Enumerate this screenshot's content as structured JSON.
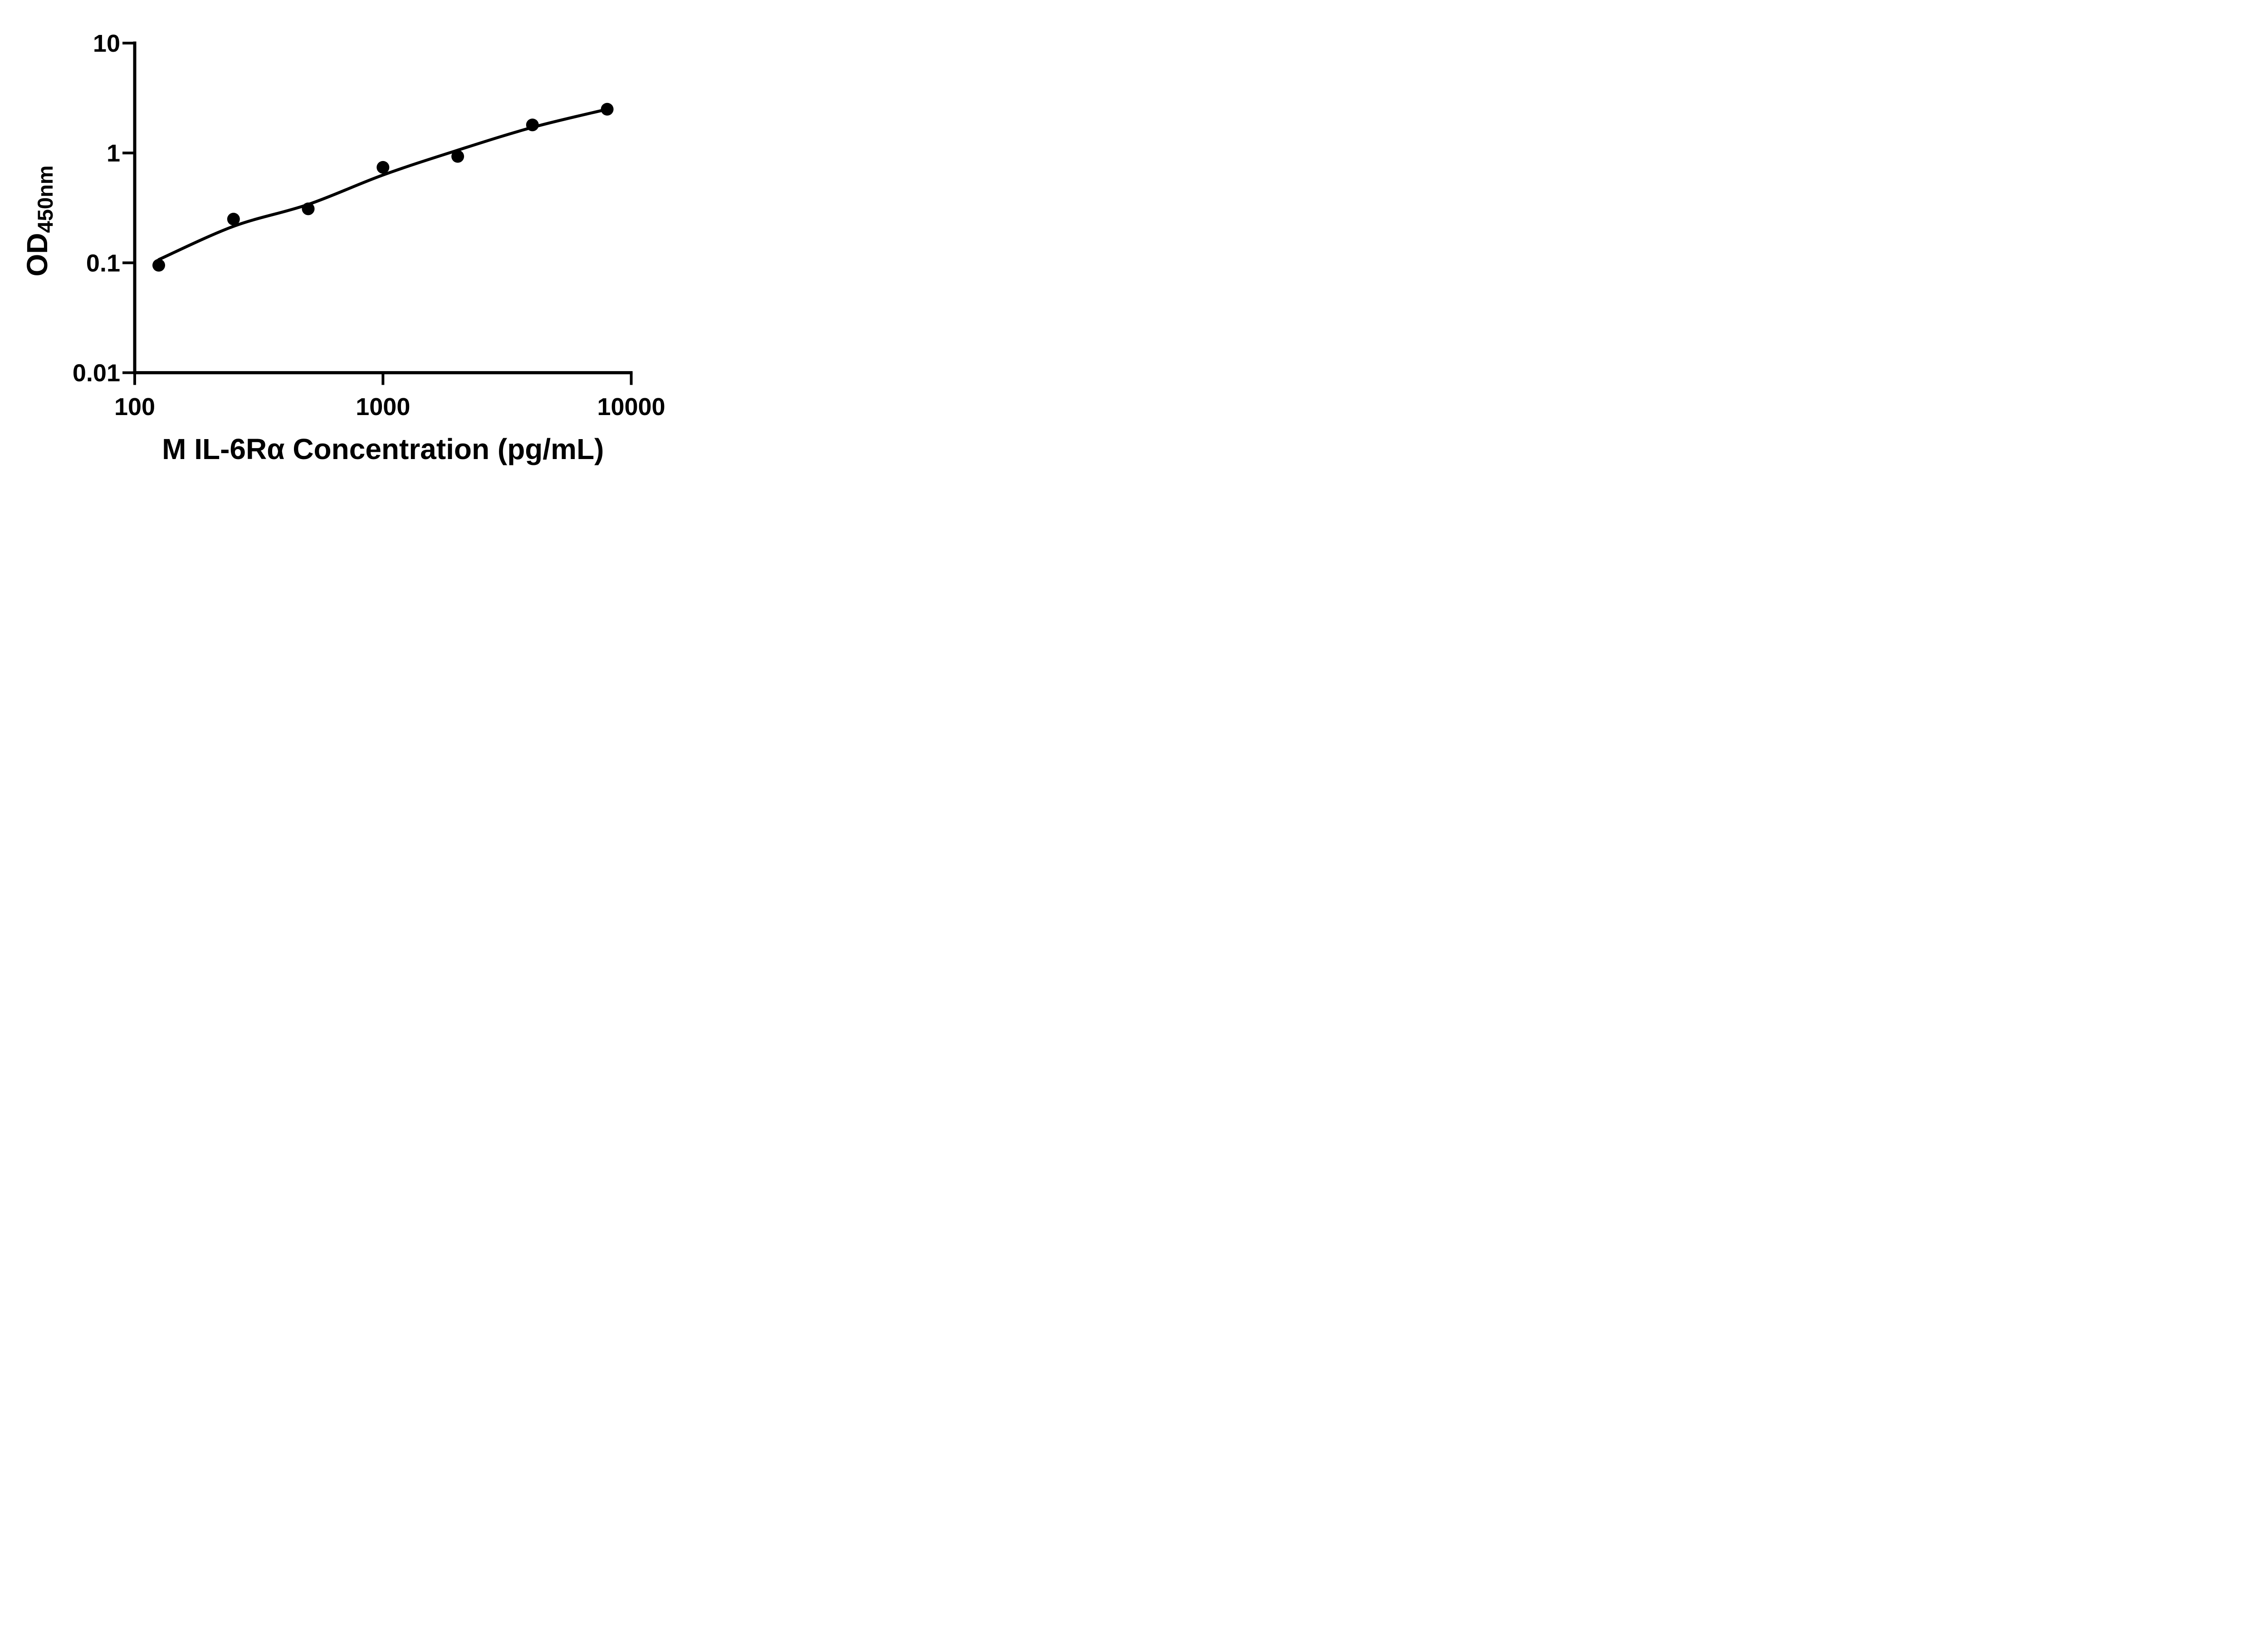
{
  "figure": {
    "background_color": "#ffffff",
    "ink_color": "#000000"
  },
  "chart_data": {
    "type": "scatter",
    "subtype": "log-log standard curve with fitted line",
    "title": "",
    "xlabel": "M IL-6Rα Concentration (pg/mL)",
    "ylabel_base": "OD",
    "ylabel_subscript": "450nm",
    "x_scale": "log10",
    "y_scale": "log10",
    "xlim": [
      100,
      10000
    ],
    "ylim": [
      0.01,
      10
    ],
    "grid": false,
    "legend": "none",
    "x_ticks": [
      {
        "value": 100,
        "label": "100"
      },
      {
        "value": 1000,
        "label": "1000"
      },
      {
        "value": 10000,
        "label": "10000"
      }
    ],
    "y_ticks": [
      {
        "value": 10,
        "label": "10"
      },
      {
        "value": 1,
        "label": "1"
      },
      {
        "value": 0.1,
        "label": "0.1"
      },
      {
        "value": 0.01,
        "label": "0.01"
      }
    ],
    "series": [
      {
        "name": "standard points",
        "marker": "filled-circle",
        "points": [
          {
            "x": 125,
            "y": 0.095
          },
          {
            "x": 250,
            "y": 0.25
          },
          {
            "x": 500,
            "y": 0.31
          },
          {
            "x": 1000,
            "y": 0.74
          },
          {
            "x": 2000,
            "y": 0.93
          },
          {
            "x": 4000,
            "y": 1.8
          },
          {
            "x": 8000,
            "y": 2.5
          }
        ]
      }
    ],
    "fit_curve_anchors": [
      {
        "x": 125,
        "y": 0.107
      },
      {
        "x": 250,
        "y": 0.215
      },
      {
        "x": 500,
        "y": 0.34
      },
      {
        "x": 1000,
        "y": 0.63
      },
      {
        "x": 2000,
        "y": 1.06
      },
      {
        "x": 4000,
        "y": 1.71
      },
      {
        "x": 8000,
        "y": 2.5
      }
    ]
  }
}
